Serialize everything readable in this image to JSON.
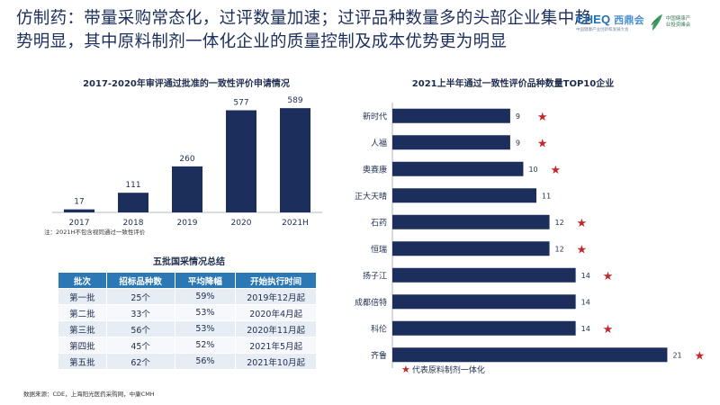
{
  "title": "仿制药：带量采购常态化，过评数量加速；过评品种数量多的头部企业集中趋势明显，其中原料制剂一体化企业的质量控制及成本优势更为明显",
  "logos": {
    "brand1_part1": "CHEQ",
    "brand1_part2": "西鼎会",
    "brand1_sub": "中国健康产业创新和发展大会",
    "brand2_text": "中国健康产业投资峰会"
  },
  "left_chart": {
    "title": "2017-2020年审评通过批准的一致性评价申请情况",
    "note": "注：2021H不包含视同通过一致性评价"
  },
  "right_chart": {
    "title": "2021上半年通过一致性评价品种数量TOP10企业"
  },
  "chart_data": [
    {
      "type": "bar",
      "title": "2017-2020年审评通过批准的一致性评价申请情况",
      "categories": [
        "2017",
        "2018",
        "2019",
        "2020",
        "2021H"
      ],
      "values": [
        17,
        111,
        260,
        577,
        589
      ],
      "ylim": [
        0,
        600
      ],
      "grid": false,
      "color": "#1c2f5c"
    },
    {
      "type": "bar",
      "orientation": "horizontal",
      "title": "2021上半年通过一致性评价品种数量TOP10企业",
      "categories": [
        "新时代",
        "人福",
        "奥赛康",
        "正大天晴",
        "石药",
        "恒瑞",
        "扬子江",
        "成都倍特",
        "科伦",
        "齐鲁"
      ],
      "values": [
        9,
        9,
        10,
        11,
        12,
        12,
        14,
        14,
        14,
        21
      ],
      "integrated": [
        true,
        true,
        true,
        false,
        true,
        true,
        true,
        false,
        true,
        true
      ],
      "xlim": [
        0,
        22
      ],
      "grid": false,
      "color": "#1c2f5c",
      "marker_color": "#c0282e"
    }
  ],
  "legend": {
    "star": "★",
    "label": "代表原料制剂一体化"
  },
  "table": {
    "title": "五批国采情况总结",
    "headers": [
      "批次",
      "招标品种数",
      "平均降幅",
      "开始执行时间"
    ],
    "rows": [
      [
        "第一批",
        "25个",
        "59%",
        "2019年12月起"
      ],
      [
        "第二批",
        "33个",
        "53%",
        "2020年4月起"
      ],
      [
        "第三批",
        "56个",
        "53%",
        "2020年11月起"
      ],
      [
        "第四批",
        "45个",
        "52%",
        "2021年5月起"
      ],
      [
        "第五批",
        "62个",
        "56%",
        "2021年10月起"
      ]
    ]
  },
  "source": "数据来源：CDE，上海阳光医药采购网，中康CMH"
}
